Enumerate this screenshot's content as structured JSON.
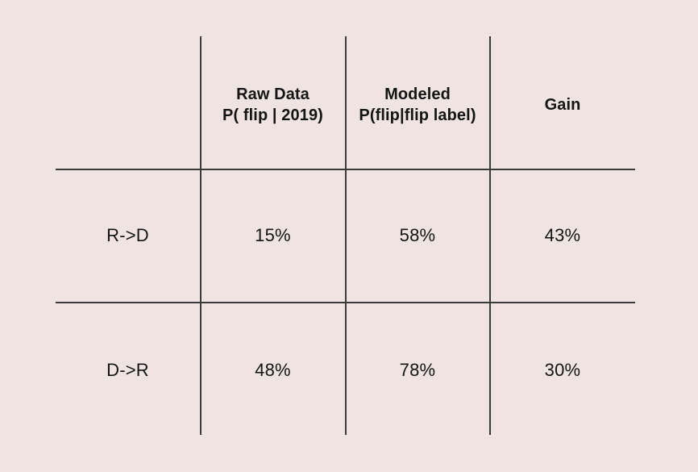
{
  "table": {
    "header": {
      "row_label": "",
      "columns": [
        {
          "line1": "Raw Data",
          "line2": "P( flip | 2019)"
        },
        {
          "line1": "Modeled",
          "line2": "P(flip|flip label)"
        },
        {
          "line1": "Gain",
          "line2": ""
        }
      ]
    },
    "rows": [
      {
        "label": "R->D",
        "values": [
          "15%",
          "58%",
          "43%"
        ]
      },
      {
        "label": "D->R",
        "values": [
          "48%",
          "78%",
          "30%"
        ]
      }
    ]
  }
}
